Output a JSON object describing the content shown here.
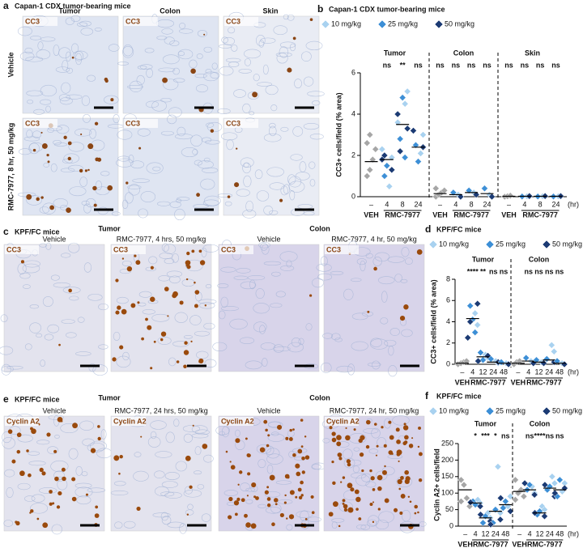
{
  "panel_a": {
    "letter": "a",
    "title": "Capan-1 CDX tumor-bearing mice",
    "columns": [
      "Tumor",
      "Colon",
      "Skin"
    ],
    "rows": [
      "Vehicle",
      "RMC-7977, 8 hr, 50 mg/kg"
    ],
    "stain": "CC3"
  },
  "panel_c": {
    "letter": "c",
    "title": "KPF/FC mice",
    "groups": [
      "Tumor",
      "Colon"
    ],
    "images": [
      "Vehicle",
      "RMC-7977, 4 hrs, 50 mg/kg",
      "Vehicle",
      "RMC-7977, 4 hr, 50 mg/kg"
    ],
    "stain": "CC3"
  },
  "panel_e": {
    "letter": "e",
    "title": "KPF/FC mice",
    "groups": [
      "Tumor",
      "Colon"
    ],
    "images": [
      "Vehicle",
      "RMC-7977, 24 hrs, 50 mg/kg",
      "Vehicle",
      "RMC-7977, 24 hr, 50 mg/kg"
    ],
    "stain": "Cyclin A2"
  },
  "chart_data": [
    {
      "type": "scatter",
      "panel": "b",
      "title": "Capan-1 CDX tumor-bearing mice",
      "y_label": "CC3+ cells/field (% area)",
      "groups": [
        "Tumor",
        "Colon",
        "Skin"
      ],
      "categories": [
        "–",
        "4",
        "8",
        "24"
      ],
      "x_group_labels": [
        "VEH",
        "RMC-7977"
      ],
      "x_unit": "(hr)",
      "ylim": [
        0,
        6
      ],
      "yticks": [
        0,
        2,
        4,
        6
      ],
      "series": [
        {
          "color": "#a6a6a6",
          "values": [
            [
              [
                1.0,
                1.3,
                1.8,
                2.3,
                2.6,
                3.0
              ],
              [],
              [],
              []
            ],
            [
              [
                0.0,
                0.1,
                0.2,
                0.3,
                0.4
              ],
              [],
              [],
              []
            ],
            [
              [
                0.0,
                0.02,
                0.05
              ],
              [],
              [],
              []
            ]
          ]
        },
        {
          "name": "10 mg/kg",
          "color": "#a9d2f0",
          "values": [
            [
              [],
              [
                0.5,
                1.9,
                2.3
              ],
              [
                4.5,
                5.1,
                3.6
              ],
              [
                2.1,
                3.0
              ]
            ],
            [
              [],
              [
                0.1
              ],
              [
                0.2
              ],
              [
                0.1
              ]
            ],
            [
              [],
              [
                0.02
              ],
              [
                0.02
              ],
              [
                0.02
              ]
            ]
          ]
        },
        {
          "name": "25 mg/kg",
          "color": "#3d8fd6",
          "values": [
            [
              [],
              [
                1.0,
                1.5
              ],
              [
                2.8,
                4.8,
                1.9
              ],
              [
                2.5,
                1.7
              ]
            ],
            [
              [],
              [
                0.2
              ],
              [
                0.3
              ],
              [
                0.4
              ]
            ],
            [
              [],
              [
                0.01
              ],
              [
                0.01
              ],
              [
                0.01
              ]
            ]
          ]
        },
        {
          "name": "50 mg/kg",
          "color": "#1c3b74",
          "values": [
            [
              [],
              [
                1.3,
                1.8,
                2.0
              ],
              [
                3.3,
                4.0,
                2.2
              ],
              [
                2.4,
                3.2
              ]
            ],
            [
              [],
              [
                0.0
              ],
              [
                0.1
              ],
              [
                0.0
              ]
            ],
            [
              [],
              [
                0.03
              ],
              [
                0.03
              ],
              [
                0.03
              ]
            ]
          ]
        }
      ],
      "medians": [
        [
          1.7,
          1.8,
          3.5,
          2.4
        ],
        [
          0.15,
          0.1,
          0.2,
          0.15
        ],
        [
          0.02,
          0.02,
          0.02,
          0.02
        ]
      ],
      "annotations": [
        [
          null,
          "ns",
          "**",
          "ns"
        ],
        [
          "ns",
          "ns",
          "ns",
          "ns"
        ],
        [
          "ns",
          "ns",
          "ns",
          "ns"
        ]
      ]
    },
    {
      "type": "scatter",
      "panel": "d",
      "title": "KPF/FC mice",
      "y_label": "CC3+ cells/field (% area)",
      "groups": [
        "Tumor",
        "Colon"
      ],
      "categories": [
        "–",
        "4",
        "12",
        "24",
        "48"
      ],
      "x_group_labels": [
        "VEH",
        "RMC-7977"
      ],
      "x_unit": "(hr)",
      "ylim": [
        0,
        8
      ],
      "yticks": [
        0,
        2,
        4,
        6,
        8
      ],
      "series": [
        {
          "color": "#a6a6a6",
          "values": [
            [
              [
                0,
                0.1,
                0.2,
                0.3
              ],
              [],
              [],
              [],
              []
            ],
            [
              [
                0,
                0.2,
                0.3
              ],
              [],
              [],
              [],
              []
            ]
          ]
        },
        {
          "name": "10 mg/kg",
          "color": "#a9d2f0",
          "values": [
            [
              [],
              [
                4.8,
                3.7
              ],
              [
                0.9,
                0.6
              ],
              [
                0.3,
                0.1
              ],
              [
                0.1
              ]
            ],
            [
              [],
              [
                0.3
              ],
              [
                0.2
              ],
              [
                1.8,
                1.2
              ],
              [
                0.1
              ]
            ]
          ]
        },
        {
          "name": "25 mg/kg",
          "color": "#3d8fd6",
          "values": [
            [
              [],
              [
                5.5,
                4.2,
                3.0
              ],
              [
                1.1,
                0.4
              ],
              [
                0.5
              ],
              [
                0.2
              ]
            ],
            [
              [],
              [
                0.6
              ],
              [
                0.4
              ],
              [
                0.5
              ],
              [
                0.3
              ]
            ]
          ]
        },
        {
          "name": "50 mg/kg",
          "color": "#1c3b74",
          "values": [
            [
              [],
              [
                5.7,
                2.5,
                4.0
              ],
              [
                0.8,
                0.3
              ],
              [
                0.2
              ],
              [
                0.0
              ]
            ],
            [
              [],
              [
                0.1
              ],
              [
                0.1
              ],
              [
                0.2
              ],
              [
                0.0
              ]
            ]
          ]
        }
      ],
      "medians": [
        [
          0.1,
          4.3,
          0.7,
          0.2,
          0.1
        ],
        [
          0.1,
          0.3,
          0.2,
          0.4,
          0.1
        ]
      ],
      "annotations": [
        [
          null,
          "****",
          "**",
          "ns",
          "ns"
        ],
        [
          null,
          "ns",
          "ns",
          "ns",
          "ns"
        ]
      ]
    },
    {
      "type": "scatter",
      "panel": "f",
      "title": "KPF/FC mice",
      "y_label": "Cyclin A2+ cells/field",
      "groups": [
        "Tumor",
        "Colon"
      ],
      "categories": [
        "–",
        "4",
        "12",
        "24",
        "48"
      ],
      "x_group_labels": [
        "VEH",
        "RMC-7977"
      ],
      "x_unit": "(hr)",
      "ylim": [
        0,
        250
      ],
      "yticks": [
        0,
        50,
        100,
        150,
        200,
        250
      ],
      "series": [
        {
          "color": "#a6a6a6",
          "values": [
            [
              [
                140,
                125,
                85,
                60,
                75
              ],
              [],
              [],
              [],
              []
            ],
            [
              [
                140,
                100,
                110,
                90,
                80
              ],
              [],
              [],
              [],
              []
            ]
          ]
        },
        {
          "name": "10 mg/kg",
          "color": "#a9d2f0",
          "values": [
            [
              [],
              [
                80,
                70
              ],
              [
                40,
                25
              ],
              [
                180,
                40
              ],
              [
                60,
                90
              ]
            ],
            [
              [],
              [
                120,
                100
              ],
              [
                60,
                50
              ],
              [
                150,
                130
              ],
              [
                105,
                130
              ]
            ]
          ]
        },
        {
          "name": "25 mg/kg",
          "color": "#3d8fd6",
          "values": [
            [
              [],
              [
                75,
                65
              ],
              [
                10,
                30
              ],
              [
                10,
                50
              ],
              [
                55,
                75
              ]
            ],
            [
              [],
              [
                110,
                125
              ],
              [
                35,
                45
              ],
              [
                110,
                120
              ],
              [
                90,
                140
              ]
            ]
          ]
        },
        {
          "name": "50 mg/kg",
          "color": "#1c3b74",
          "values": [
            [
              [],
              [
                60,
                72
              ],
              [
                15,
                35
              ],
              [
                20,
                5
              ],
              [
                45,
                85
              ]
            ],
            [
              [],
              [
                95,
                130
              ],
              [
                30,
                40
              ],
              [
                90,
                125
              ],
              [
                115,
                100
              ]
            ]
          ]
        }
      ],
      "medians": [
        [
          110,
          70,
          25,
          45,
          65
        ],
        [
          105,
          110,
          40,
          115,
          110
        ]
      ],
      "annotations": [
        [
          null,
          "*",
          "***",
          "*",
          "ns"
        ],
        [
          null,
          "ns",
          "****",
          "ns",
          "ns"
        ]
      ]
    }
  ]
}
